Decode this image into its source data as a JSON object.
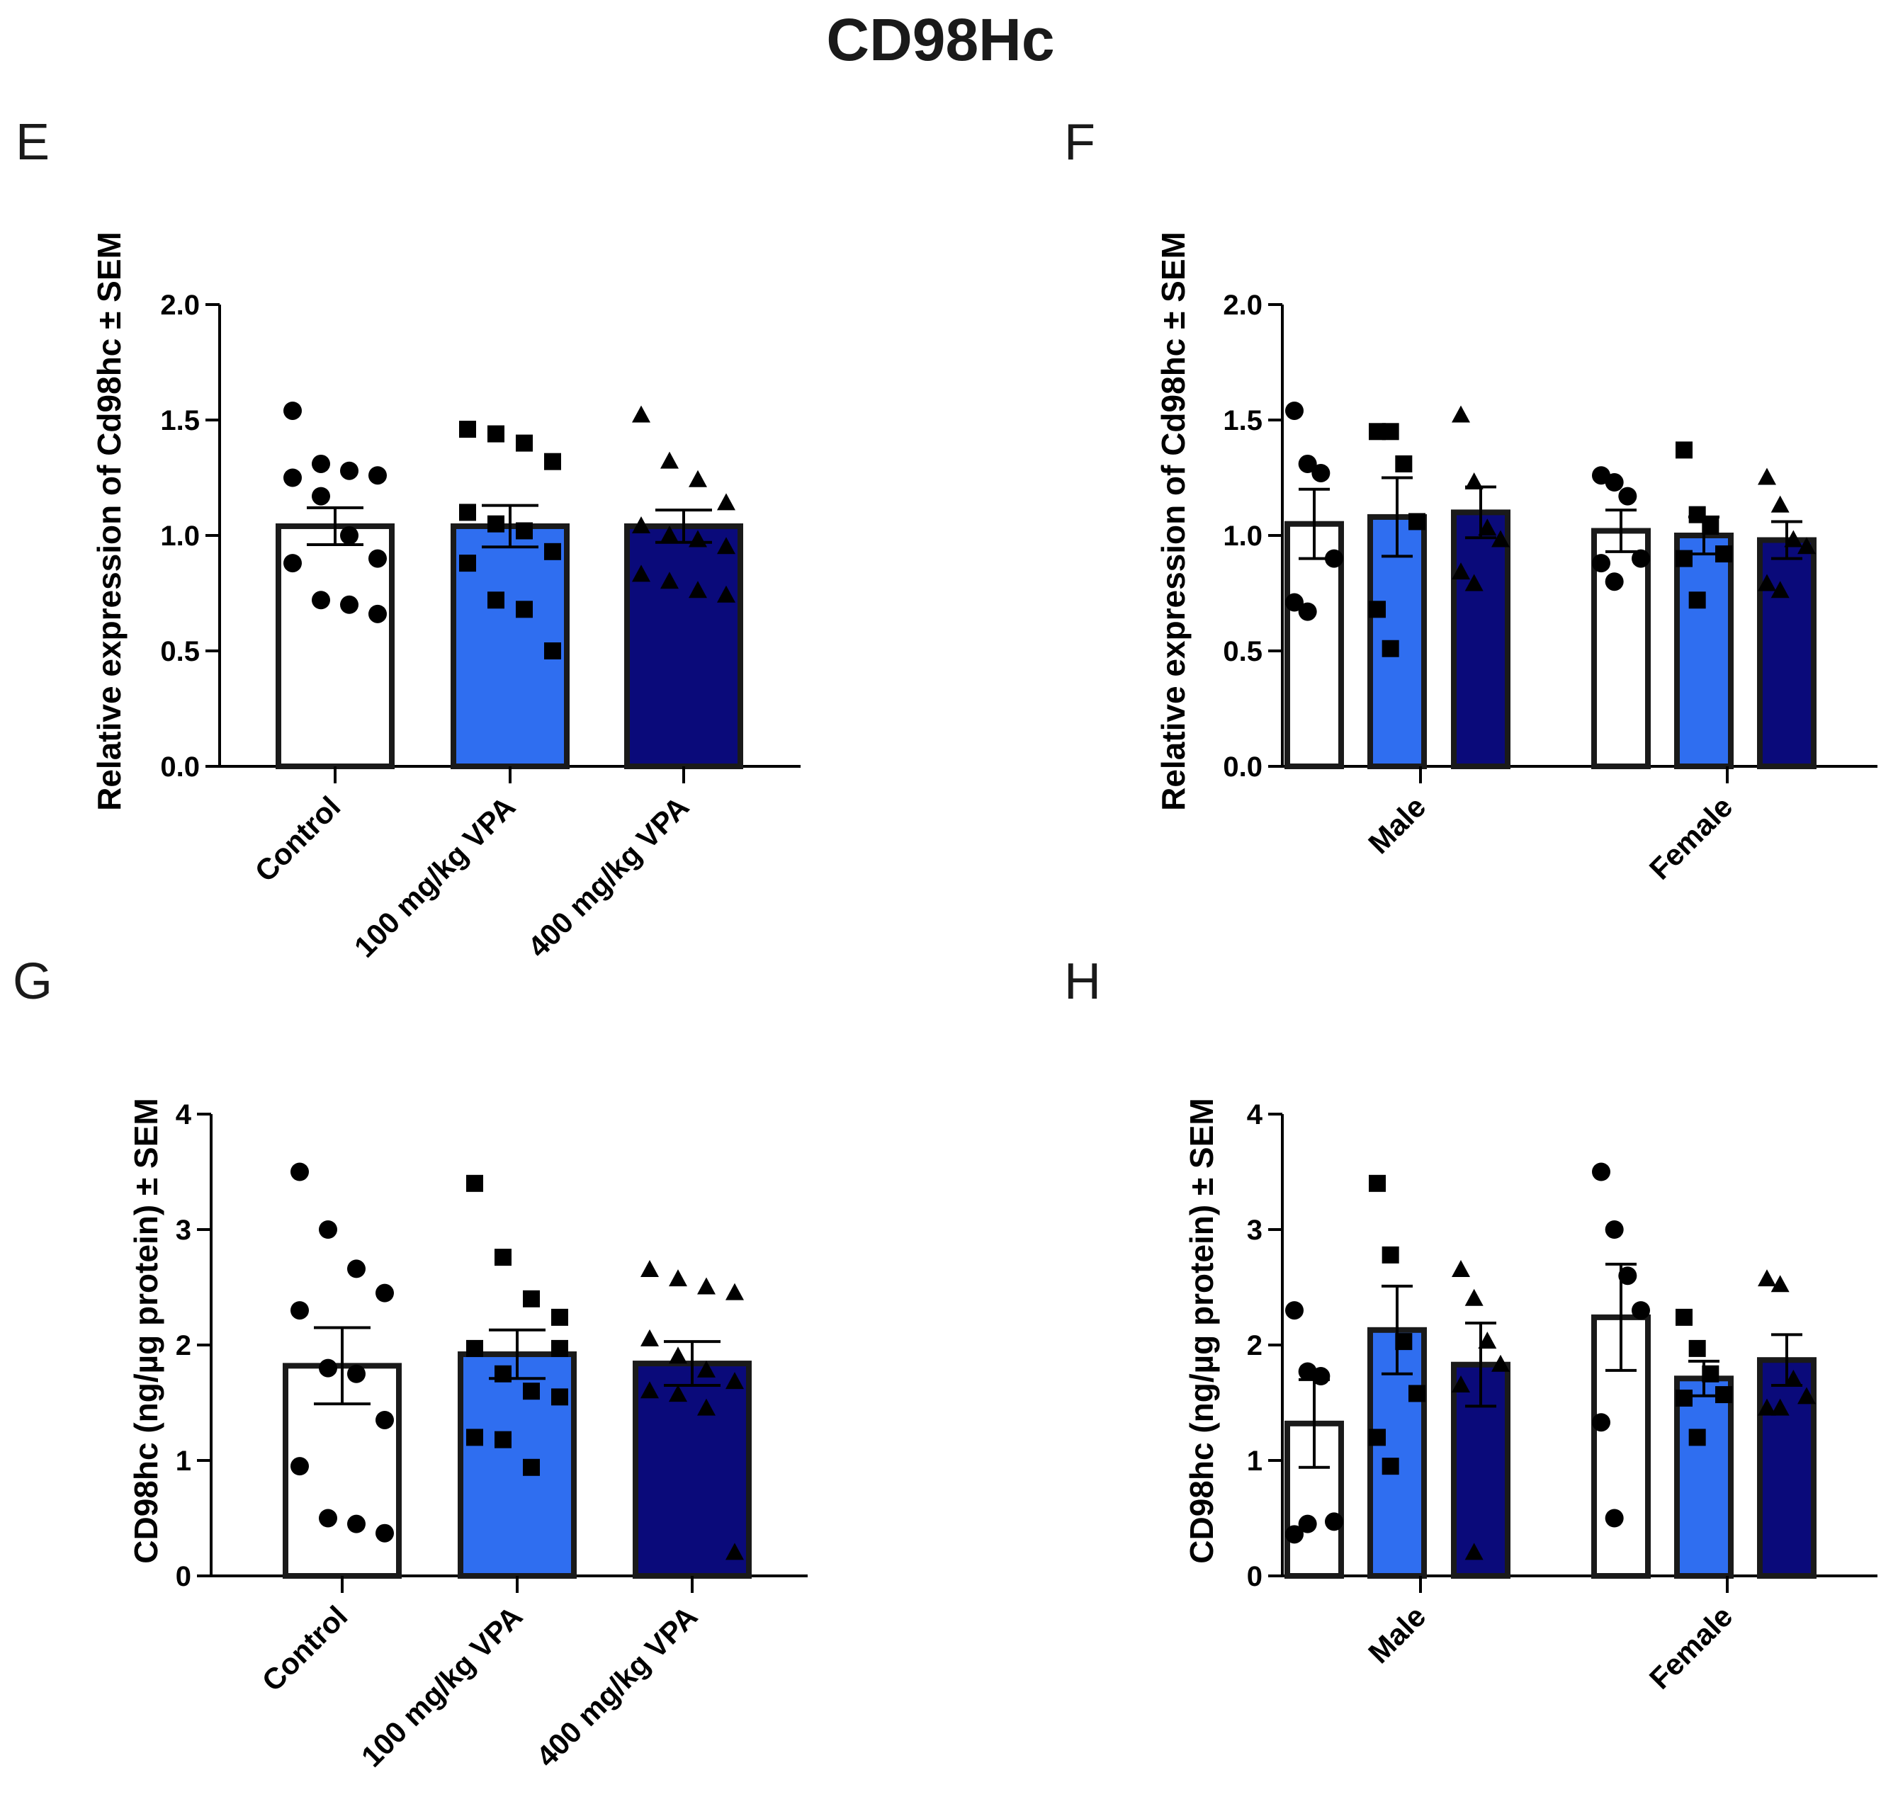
{
  "figure": {
    "title": "CD98Hc",
    "panel_letters": [
      "E",
      "F",
      "G",
      "H"
    ]
  },
  "colors": {
    "control": "#ffffff",
    "vpa100": "#2f6ef0",
    "vpa400": "#0a0a7a",
    "outline": "#1a1a1a",
    "points": "#000000"
  },
  "chart_data": [
    {
      "panel": "E",
      "type": "bar",
      "ylabel": "Relative expression of Cd98hc ± SEM",
      "ylim": [
        0,
        2.0
      ],
      "yticks": [
        0,
        0.5,
        1.0,
        1.5,
        2.0
      ],
      "ytick_labels": [
        "0.0",
        "0.5",
        "1.0",
        "1.5",
        "2.0"
      ],
      "categories": [
        "Control",
        "100 mg/kg VPA",
        "400 mg/kg VPA"
      ],
      "series": [
        {
          "group": "Control",
          "mean": 1.04,
          "sem": 0.08,
          "marker": "circle",
          "points": [
            1.54,
            1.31,
            1.28,
            1.26,
            1.25,
            1.17,
            1.0,
            0.9,
            0.88,
            0.72,
            0.7,
            0.66
          ]
        },
        {
          "group": "100 mg/kg VPA",
          "mean": 1.04,
          "sem": 0.09,
          "marker": "square",
          "points": [
            1.46,
            1.44,
            1.4,
            1.32,
            1.1,
            1.05,
            1.02,
            0.93,
            0.88,
            0.72,
            0.68,
            0.5
          ]
        },
        {
          "group": "400 mg/kg VPA",
          "mean": 1.04,
          "sem": 0.07,
          "marker": "triangle",
          "points": [
            1.52,
            1.32,
            1.24,
            1.14,
            1.04,
            1.0,
            0.98,
            0.95,
            0.83,
            0.8,
            0.76,
            0.74
          ]
        }
      ]
    },
    {
      "panel": "F",
      "type": "bar",
      "ylabel": "Relative expression of Cd98hc ± SEM",
      "ylim": [
        0,
        2.0
      ],
      "yticks": [
        0,
        0.5,
        1.0,
        1.5,
        2.0
      ],
      "ytick_labels": [
        "0.0",
        "0.5",
        "1.0",
        "1.5",
        "2.0"
      ],
      "categories": [
        "Male",
        "Female"
      ],
      "series": [
        {
          "category": "Male",
          "group": "Control",
          "mean": 1.05,
          "sem": 0.15,
          "marker": "circle",
          "points": [
            1.54,
            1.31,
            1.27,
            0.9,
            0.71,
            0.67
          ]
        },
        {
          "category": "Male",
          "group": "100 mg/kg VPA",
          "mean": 1.08,
          "sem": 0.17,
          "marker": "square",
          "points": [
            1.45,
            1.45,
            1.31,
            1.06,
            0.68,
            0.51
          ]
        },
        {
          "category": "Male",
          "group": "400 mg/kg VPA",
          "mean": 1.1,
          "sem": 0.11,
          "marker": "triangle",
          "points": [
            1.52,
            1.23,
            1.03,
            0.98,
            0.84,
            0.79
          ]
        },
        {
          "category": "Female",
          "group": "Control",
          "mean": 1.02,
          "sem": 0.09,
          "marker": "circle",
          "points": [
            1.26,
            1.23,
            1.17,
            0.9,
            0.88,
            0.8
          ]
        },
        {
          "category": "Female",
          "group": "100 mg/kg VPA",
          "mean": 1.0,
          "sem": 0.08,
          "marker": "square",
          "points": [
            1.37,
            1.09,
            1.04,
            0.92,
            0.9,
            0.72
          ]
        },
        {
          "category": "Female",
          "group": "400 mg/kg VPA",
          "mean": 0.98,
          "sem": 0.08,
          "marker": "triangle",
          "points": [
            1.25,
            1.13,
            0.98,
            0.95,
            0.79,
            0.76
          ]
        }
      ]
    },
    {
      "panel": "G",
      "type": "bar",
      "ylabel": "CD98hc (ng/µg protein) ± SEM",
      "ylim": [
        0,
        4
      ],
      "yticks": [
        0,
        1,
        2,
        3,
        4
      ],
      "ytick_labels": [
        "0",
        "1",
        "2",
        "3",
        "4"
      ],
      "categories": [
        "Control",
        "100 mg/kg VPA",
        "400 mg/kg VPA"
      ],
      "series": [
        {
          "group": "Control",
          "mean": 1.82,
          "sem": 0.33,
          "marker": "circle",
          "points": [
            3.5,
            3.0,
            2.66,
            2.45,
            2.3,
            1.8,
            1.75,
            1.35,
            0.95,
            0.5,
            0.45,
            0.37
          ]
        },
        {
          "group": "100 mg/kg VPA",
          "mean": 1.92,
          "sem": 0.21,
          "marker": "square",
          "points": [
            3.4,
            2.76,
            2.4,
            2.24,
            1.97,
            1.75,
            1.6,
            1.55,
            1.2,
            1.18,
            0.94,
            1.97
          ]
        },
        {
          "group": "400 mg/kg VPA",
          "mean": 1.84,
          "sem": 0.19,
          "marker": "triangle",
          "points": [
            2.65,
            2.57,
            2.5,
            2.45,
            2.05,
            1.9,
            1.78,
            1.68,
            1.6,
            1.57,
            1.45,
            0.2
          ]
        }
      ]
    },
    {
      "panel": "H",
      "type": "bar",
      "ylabel": "CD98hc (ng/µg protein) ± SEM",
      "ylim": [
        0,
        4
      ],
      "yticks": [
        0,
        1,
        2,
        3,
        4
      ],
      "ytick_labels": [
        "0",
        "1",
        "2",
        "3",
        "4"
      ],
      "categories": [
        "Male",
        "Female"
      ],
      "series": [
        {
          "category": "Male",
          "group": "Control",
          "mean": 1.32,
          "sem": 0.38,
          "marker": "circle",
          "points": [
            2.3,
            1.77,
            1.73,
            0.47,
            0.36,
            0.45
          ]
        },
        {
          "category": "Male",
          "group": "100 mg/kg VPA",
          "mean": 2.13,
          "sem": 0.38,
          "marker": "square",
          "points": [
            3.4,
            2.78,
            2.03,
            1.58,
            1.2,
            0.95
          ]
        },
        {
          "category": "Male",
          "group": "400 mg/kg VPA",
          "mean": 1.83,
          "sem": 0.36,
          "marker": "triangle",
          "points": [
            2.65,
            2.4,
            2.03,
            1.83,
            1.65,
            0.2
          ]
        },
        {
          "category": "Female",
          "group": "Control",
          "mean": 2.24,
          "sem": 0.46,
          "marker": "circle",
          "points": [
            3.5,
            3.0,
            2.6,
            2.3,
            1.33,
            0.5
          ]
        },
        {
          "category": "Female",
          "group": "100 mg/kg VPA",
          "mean": 1.71,
          "sem": 0.15,
          "marker": "square",
          "points": [
            2.24,
            1.97,
            1.75,
            1.57,
            1.54,
            1.2
          ]
        },
        {
          "category": "Female",
          "group": "400 mg/kg VPA",
          "mean": 1.87,
          "sem": 0.22,
          "marker": "triangle",
          "points": [
            2.57,
            2.52,
            1.7,
            1.55,
            1.45,
            1.45
          ]
        }
      ]
    }
  ]
}
